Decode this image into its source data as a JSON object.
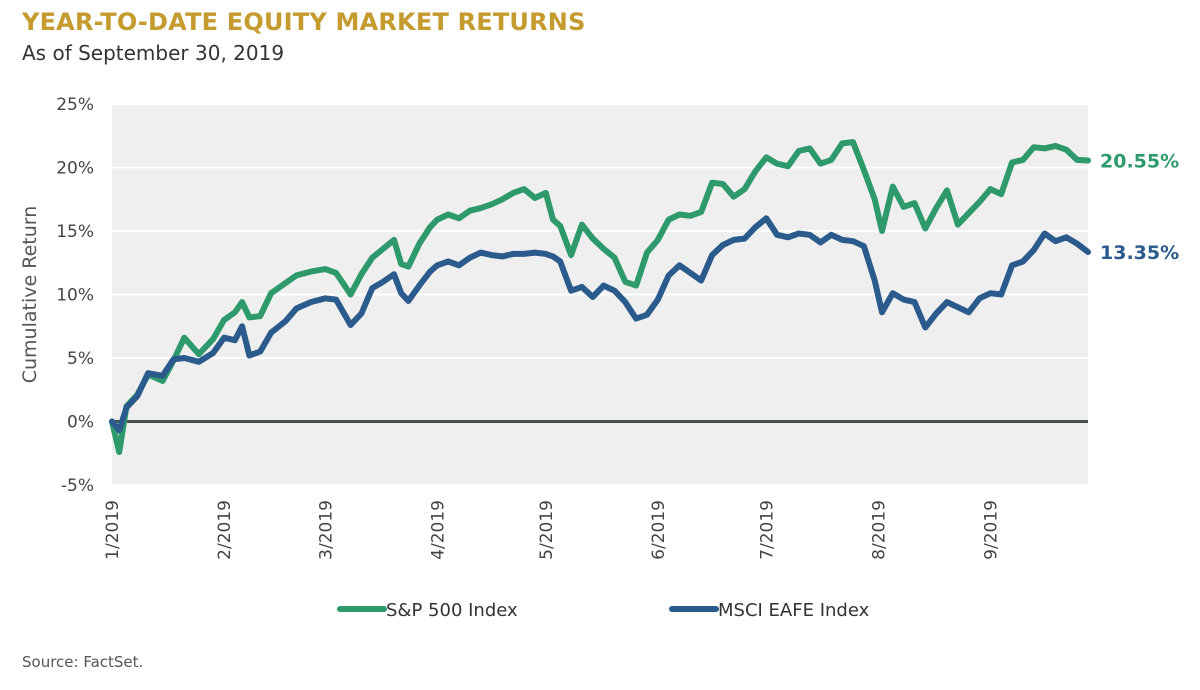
{
  "title": "YEAR-TO-DATE EQUITY MARKET RETURNS",
  "subtitle": "As of September 30, 2019",
  "source": "Source: FactSet.",
  "chart_data": {
    "type": "line",
    "ylabel": "Cumulative Return",
    "ylim": [
      -5,
      25
    ],
    "yticks": [
      25,
      20,
      15,
      10,
      5,
      0,
      -5
    ],
    "ytick_labels": [
      "25%",
      "20%",
      "15%",
      "10%",
      "5%",
      "0%",
      "-5%"
    ],
    "xlim": [
      0,
      270
    ],
    "xtick_positions": [
      0,
      31,
      59,
      90,
      120,
      151,
      181,
      212,
      243
    ],
    "xtick_labels": [
      "1/2019",
      "2/2019",
      "3/2019",
      "4/2019",
      "5/2019",
      "6/2019",
      "7/2019",
      "8/2019",
      "9/2019"
    ],
    "grid": "horizontal",
    "legend_position": "bottom",
    "series": [
      {
        "name": "S&P 500 Index",
        "color": "#2e9a6c",
        "end_label": "20.55%",
        "x": [
          0,
          2,
          4,
          7,
          10,
          14,
          17,
          20,
          24,
          28,
          31,
          34,
          36,
          38,
          41,
          44,
          48,
          51,
          55,
          59,
          62,
          66,
          69,
          72,
          75,
          78,
          80,
          82,
          85,
          88,
          90,
          93,
          96,
          99,
          102,
          105,
          108,
          111,
          114,
          117,
          120,
          122,
          124,
          127,
          130,
          133,
          136,
          139,
          142,
          145,
          148,
          151,
          154,
          157,
          160,
          163,
          166,
          169,
          172,
          175,
          178,
          181,
          184,
          187,
          190,
          193,
          196,
          199,
          202,
          205,
          208,
          211,
          213,
          216,
          219,
          222,
          225,
          228,
          231,
          234,
          237,
          240,
          243,
          246,
          249,
          252,
          255,
          258,
          261,
          264,
          267,
          270
        ],
        "values": [
          0,
          -2.4,
          1.2,
          2.1,
          3.7,
          3.2,
          4.8,
          6.6,
          5.3,
          6.5,
          8.0,
          8.6,
          9.4,
          8.2,
          8.3,
          10.1,
          10.9,
          11.5,
          11.8,
          12.0,
          11.7,
          10.0,
          11.6,
          12.9,
          13.6,
          14.3,
          12.4,
          12.2,
          14.0,
          15.3,
          15.9,
          16.3,
          16.0,
          16.6,
          16.8,
          17.1,
          17.5,
          18.0,
          18.3,
          17.6,
          18.0,
          15.9,
          15.4,
          13.1,
          15.5,
          14.4,
          13.6,
          12.9,
          11.0,
          10.7,
          13.3,
          14.3,
          15.9,
          16.3,
          16.2,
          16.5,
          18.8,
          18.7,
          17.7,
          18.3,
          19.7,
          20.8,
          20.3,
          20.1,
          21.3,
          21.5,
          20.3,
          20.6,
          21.9,
          22.0,
          19.8,
          17.5,
          15.0,
          18.5,
          16.9,
          17.2,
          15.2,
          16.8,
          18.2,
          15.5,
          16.4,
          17.3,
          18.3,
          17.9,
          20.4,
          20.6,
          21.6,
          21.5,
          21.7,
          21.4,
          20.6,
          20.55
        ]
      },
      {
        "name": "MSCI EAFE Index",
        "color": "#2b5a8c",
        "end_label": "13.35%",
        "x": [
          0,
          2,
          4,
          7,
          10,
          14,
          17,
          20,
          24,
          28,
          31,
          34,
          36,
          38,
          41,
          44,
          48,
          51,
          55,
          59,
          62,
          66,
          69,
          72,
          75,
          78,
          80,
          82,
          85,
          88,
          90,
          93,
          96,
          99,
          102,
          105,
          108,
          111,
          114,
          117,
          120,
          122,
          124,
          127,
          130,
          133,
          136,
          139,
          142,
          145,
          148,
          151,
          154,
          157,
          160,
          163,
          166,
          169,
          172,
          175,
          178,
          181,
          184,
          187,
          190,
          193,
          196,
          199,
          202,
          205,
          208,
          211,
          213,
          216,
          219,
          222,
          225,
          228,
          231,
          234,
          237,
          240,
          243,
          246,
          249,
          252,
          255,
          258,
          261,
          264,
          267,
          270
        ],
        "values": [
          0,
          -0.7,
          1.1,
          2.0,
          3.8,
          3.6,
          4.9,
          5.0,
          4.7,
          5.4,
          6.6,
          6.4,
          7.5,
          5.2,
          5.5,
          7.0,
          7.9,
          8.9,
          9.4,
          9.7,
          9.6,
          7.6,
          8.5,
          10.5,
          11.0,
          11.6,
          10.1,
          9.5,
          10.7,
          11.8,
          12.3,
          12.6,
          12.3,
          12.9,
          13.3,
          13.1,
          13.0,
          13.2,
          13.2,
          13.3,
          13.2,
          13.0,
          12.6,
          10.3,
          10.6,
          9.8,
          10.7,
          10.3,
          9.4,
          8.1,
          8.4,
          9.6,
          11.5,
          12.3,
          11.7,
          11.1,
          13.1,
          13.9,
          14.3,
          14.4,
          15.3,
          16.0,
          14.7,
          14.5,
          14.8,
          14.7,
          14.1,
          14.7,
          14.3,
          14.2,
          13.8,
          11.1,
          8.6,
          10.1,
          9.6,
          9.4,
          7.4,
          8.5,
          9.4,
          9.0,
          8.6,
          9.7,
          10.1,
          10.0,
          12.3,
          12.6,
          13.5,
          14.8,
          14.2,
          14.5,
          14.0,
          13.35
        ]
      }
    ]
  }
}
